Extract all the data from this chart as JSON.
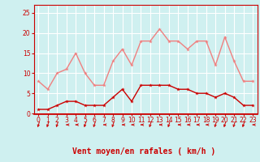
{
  "x": [
    0,
    1,
    2,
    3,
    4,
    5,
    6,
    7,
    8,
    9,
    10,
    11,
    12,
    13,
    14,
    15,
    16,
    17,
    18,
    19,
    20,
    21,
    22,
    23
  ],
  "rafales": [
    8,
    6,
    10,
    11,
    15,
    10,
    7,
    7,
    13,
    16,
    12,
    18,
    18,
    21,
    18,
    18,
    16,
    18,
    18,
    12,
    19,
    13,
    8,
    8
  ],
  "moyen": [
    1,
    1,
    2,
    3,
    3,
    2,
    2,
    2,
    4,
    6,
    3,
    7,
    7,
    7,
    7,
    6,
    6,
    5,
    5,
    4,
    5,
    4,
    2,
    2
  ],
  "color_rafales": "#f08080",
  "color_moyen": "#cc0000",
  "bg_color": "#cff0f0",
  "grid_color": "#ffffff",
  "xlabel": "Vent moyen/en rafales ( km/h )",
  "xlabel_color": "#cc0000",
  "xlabel_fontsize": 7,
  "ylim": [
    0,
    27
  ],
  "yticks": [
    0,
    5,
    10,
    15,
    20,
    25
  ],
  "xticks": [
    0,
    1,
    2,
    3,
    4,
    5,
    6,
    7,
    8,
    9,
    10,
    11,
    12,
    13,
    14,
    15,
    16,
    17,
    18,
    19,
    20,
    21,
    22,
    23
  ],
  "tick_color": "#cc0000",
  "tick_fontsize": 5.5,
  "line_width": 1.0,
  "marker_size": 3.5,
  "arrow_angles": [
    225,
    225,
    225,
    270,
    270,
    225,
    225,
    270,
    225,
    270,
    270,
    270,
    225,
    270,
    225,
    270,
    270,
    270,
    270,
    225,
    225,
    225,
    225,
    270
  ]
}
